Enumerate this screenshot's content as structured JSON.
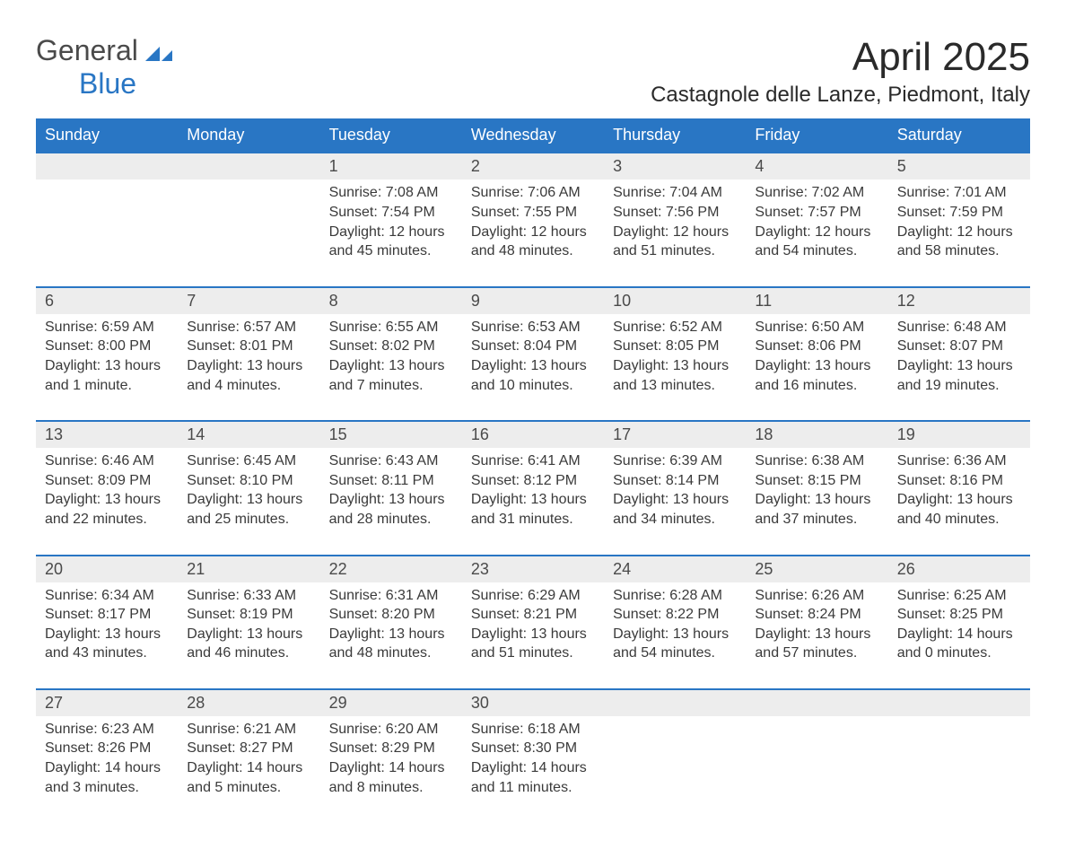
{
  "logo": {
    "text_general": "General",
    "text_blue": "Blue",
    "icon_color": "#2976c4"
  },
  "title": {
    "month": "April 2025",
    "location": "Castagnole delle Lanze, Piedmont, Italy"
  },
  "colors": {
    "header_bg": "#2976c4",
    "header_text": "#ffffff",
    "day_number_bg": "#ededed",
    "border_top": "#2976c4",
    "body_text": "#3a3a3a",
    "title_text": "#2a2a2a",
    "logo_gray": "#4a4a4a"
  },
  "fonts": {
    "month_title_size": 44,
    "location_size": 24,
    "header_size": 18,
    "day_number_size": 18,
    "cell_size": 16,
    "logo_size": 32
  },
  "days_of_week": [
    "Sunday",
    "Monday",
    "Tuesday",
    "Wednesday",
    "Thursday",
    "Friday",
    "Saturday"
  ],
  "weeks": [
    {
      "numbers": [
        "",
        "",
        "1",
        "2",
        "3",
        "4",
        "5"
      ],
      "cells": [
        "",
        "",
        "Sunrise: 7:08 AM\nSunset: 7:54 PM\nDaylight: 12 hours and 45 minutes.",
        "Sunrise: 7:06 AM\nSunset: 7:55 PM\nDaylight: 12 hours and 48 minutes.",
        "Sunrise: 7:04 AM\nSunset: 7:56 PM\nDaylight: 12 hours and 51 minutes.",
        "Sunrise: 7:02 AM\nSunset: 7:57 PM\nDaylight: 12 hours and 54 minutes.",
        "Sunrise: 7:01 AM\nSunset: 7:59 PM\nDaylight: 12 hours and 58 minutes."
      ]
    },
    {
      "numbers": [
        "6",
        "7",
        "8",
        "9",
        "10",
        "11",
        "12"
      ],
      "cells": [
        "Sunrise: 6:59 AM\nSunset: 8:00 PM\nDaylight: 13 hours and 1 minute.",
        "Sunrise: 6:57 AM\nSunset: 8:01 PM\nDaylight: 13 hours and 4 minutes.",
        "Sunrise: 6:55 AM\nSunset: 8:02 PM\nDaylight: 13 hours and 7 minutes.",
        "Sunrise: 6:53 AM\nSunset: 8:04 PM\nDaylight: 13 hours and 10 minutes.",
        "Sunrise: 6:52 AM\nSunset: 8:05 PM\nDaylight: 13 hours and 13 minutes.",
        "Sunrise: 6:50 AM\nSunset: 8:06 PM\nDaylight: 13 hours and 16 minutes.",
        "Sunrise: 6:48 AM\nSunset: 8:07 PM\nDaylight: 13 hours and 19 minutes."
      ]
    },
    {
      "numbers": [
        "13",
        "14",
        "15",
        "16",
        "17",
        "18",
        "19"
      ],
      "cells": [
        "Sunrise: 6:46 AM\nSunset: 8:09 PM\nDaylight: 13 hours and 22 minutes.",
        "Sunrise: 6:45 AM\nSunset: 8:10 PM\nDaylight: 13 hours and 25 minutes.",
        "Sunrise: 6:43 AM\nSunset: 8:11 PM\nDaylight: 13 hours and 28 minutes.",
        "Sunrise: 6:41 AM\nSunset: 8:12 PM\nDaylight: 13 hours and 31 minutes.",
        "Sunrise: 6:39 AM\nSunset: 8:14 PM\nDaylight: 13 hours and 34 minutes.",
        "Sunrise: 6:38 AM\nSunset: 8:15 PM\nDaylight: 13 hours and 37 minutes.",
        "Sunrise: 6:36 AM\nSunset: 8:16 PM\nDaylight: 13 hours and 40 minutes."
      ]
    },
    {
      "numbers": [
        "20",
        "21",
        "22",
        "23",
        "24",
        "25",
        "26"
      ],
      "cells": [
        "Sunrise: 6:34 AM\nSunset: 8:17 PM\nDaylight: 13 hours and 43 minutes.",
        "Sunrise: 6:33 AM\nSunset: 8:19 PM\nDaylight: 13 hours and 46 minutes.",
        "Sunrise: 6:31 AM\nSunset: 8:20 PM\nDaylight: 13 hours and 48 minutes.",
        "Sunrise: 6:29 AM\nSunset: 8:21 PM\nDaylight: 13 hours and 51 minutes.",
        "Sunrise: 6:28 AM\nSunset: 8:22 PM\nDaylight: 13 hours and 54 minutes.",
        "Sunrise: 6:26 AM\nSunset: 8:24 PM\nDaylight: 13 hours and 57 minutes.",
        "Sunrise: 6:25 AM\nSunset: 8:25 PM\nDaylight: 14 hours and 0 minutes."
      ]
    },
    {
      "numbers": [
        "27",
        "28",
        "29",
        "30",
        "",
        "",
        ""
      ],
      "cells": [
        "Sunrise: 6:23 AM\nSunset: 8:26 PM\nDaylight: 14 hours and 3 minutes.",
        "Sunrise: 6:21 AM\nSunset: 8:27 PM\nDaylight: 14 hours and 5 minutes.",
        "Sunrise: 6:20 AM\nSunset: 8:29 PM\nDaylight: 14 hours and 8 minutes.",
        "Sunrise: 6:18 AM\nSunset: 8:30 PM\nDaylight: 14 hours and 11 minutes.",
        "",
        "",
        ""
      ]
    }
  ]
}
